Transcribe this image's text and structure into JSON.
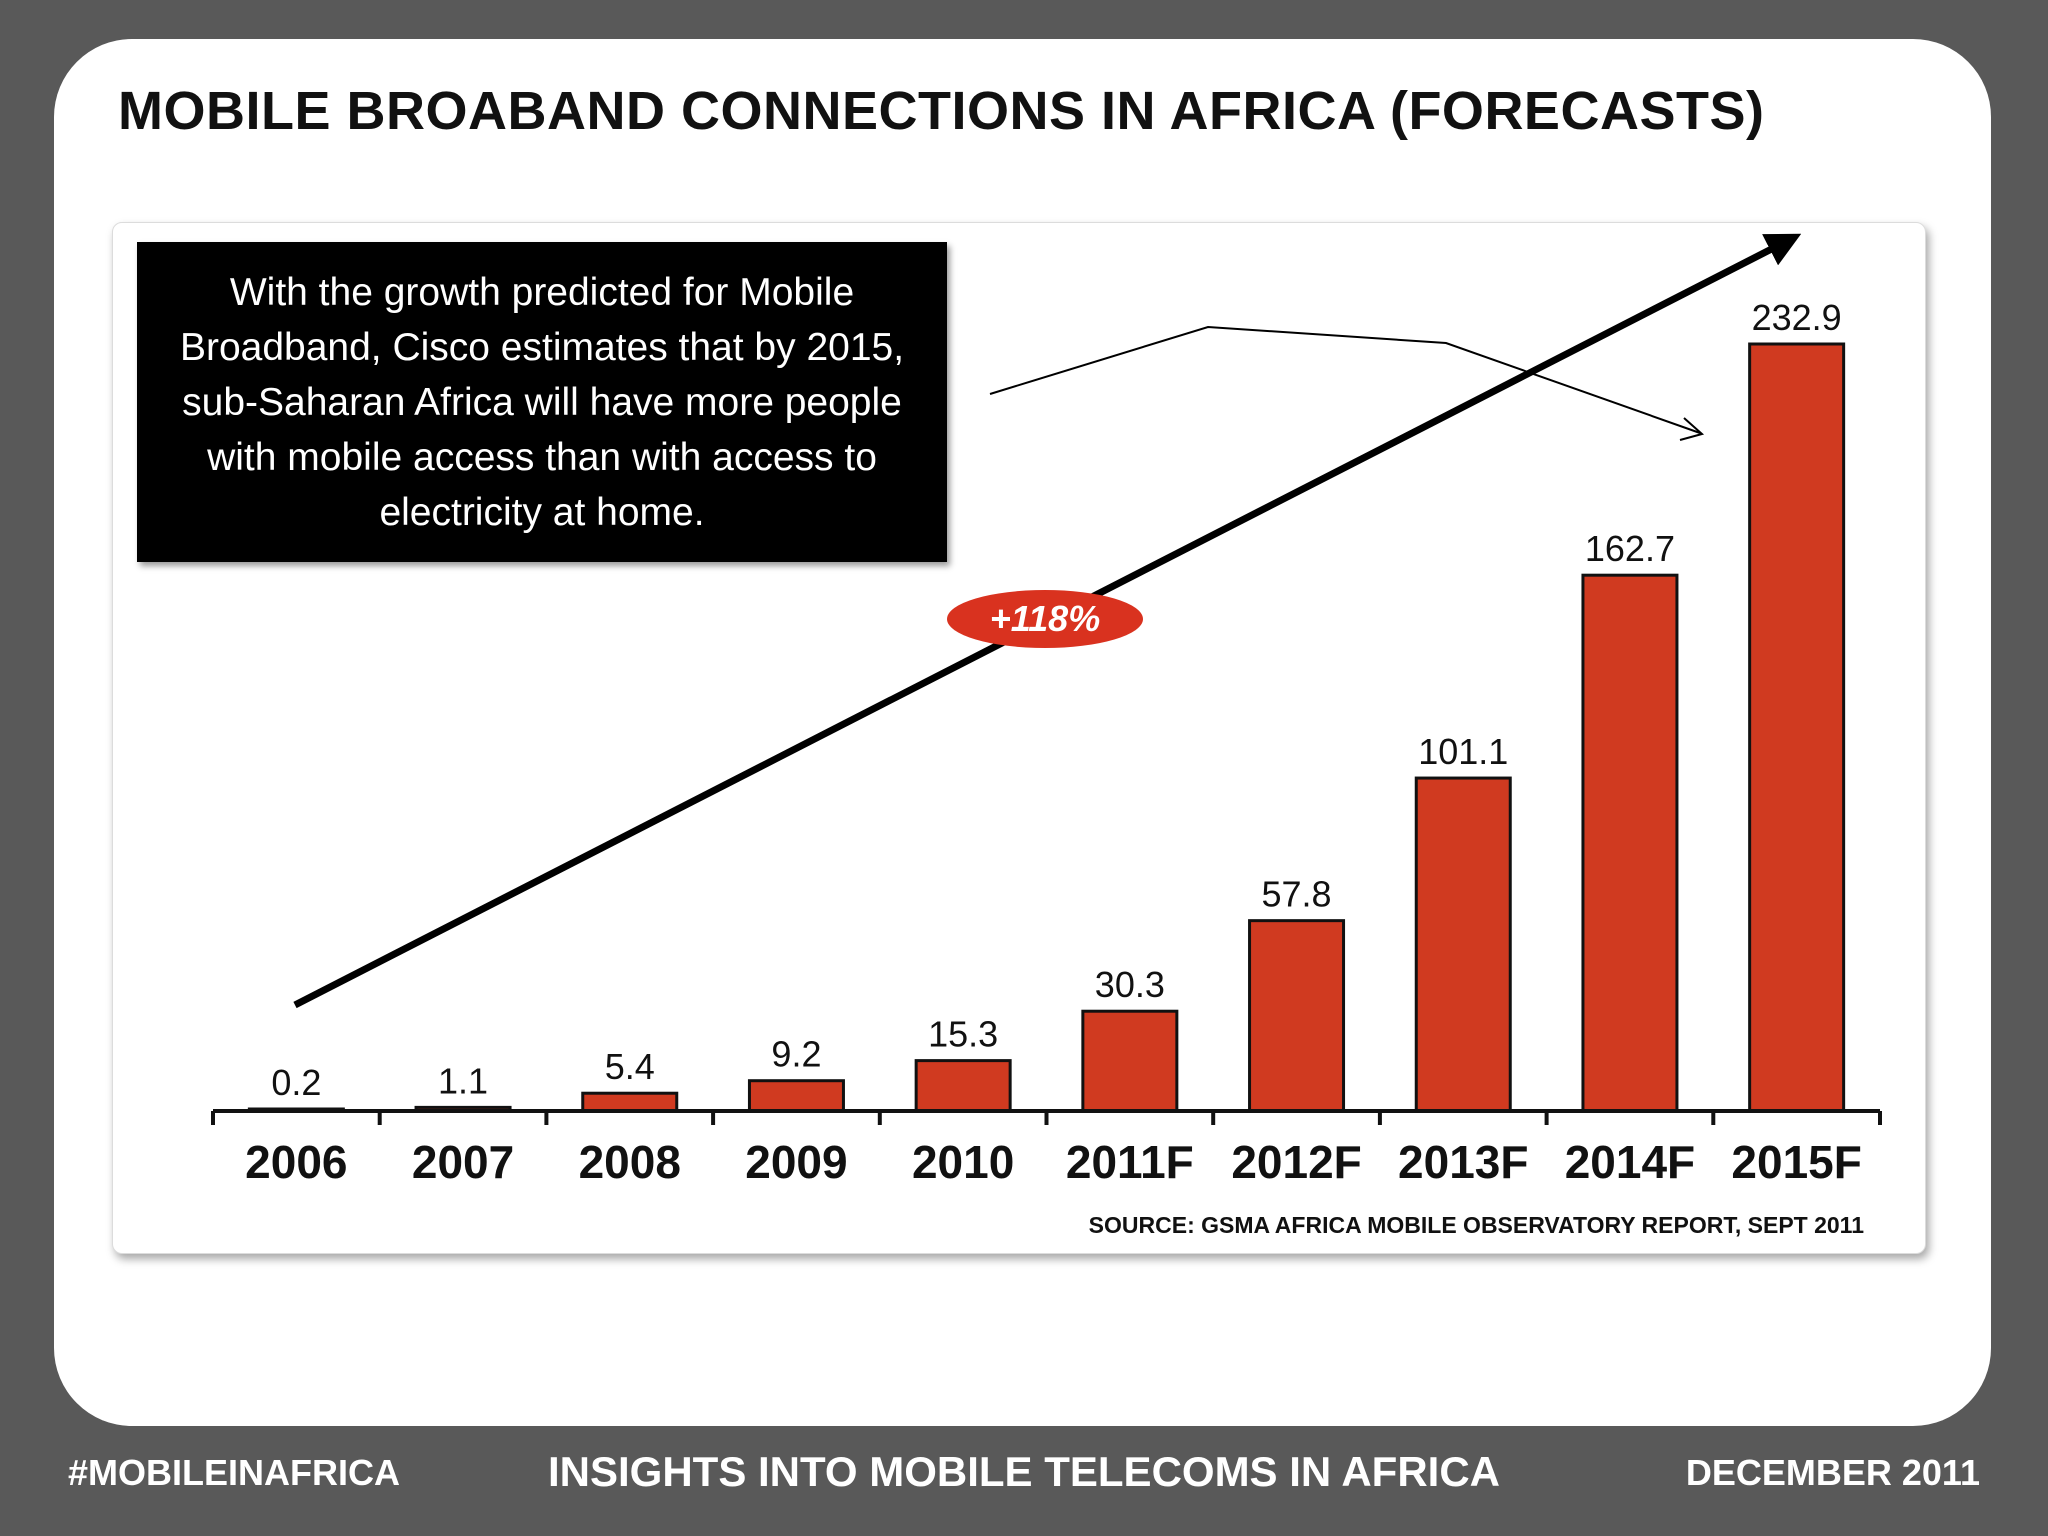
{
  "slide": {
    "title": "MOBILE BROABAND CONNECTIONS IN AFRICA (FORECASTS)"
  },
  "callout": {
    "text": "With the growth predicted for Mobile Broadband, Cisco estimates that by 2015, sub-Saharan Africa will have more people with mobile access than with access to electricity at home."
  },
  "growth_badge": "+118%",
  "source": "SOURCE: GSMA AFRICA MOBILE OBSERVATORY REPORT, SEPT 2011",
  "footer": {
    "left": "#MOBILEINAFRICA",
    "center": "INSIGHTS INTO MOBILE TELECOMS IN AFRICA",
    "right": "DECEMBER 2011"
  },
  "colors": {
    "bar": "#d03a20",
    "badge": "#d9321f",
    "background": "#595959"
  },
  "chart_data": {
    "type": "bar",
    "categories": [
      "2006",
      "2007",
      "2008",
      "2009",
      "2010",
      "2011F",
      "2012F",
      "2013F",
      "2014F",
      "2015F"
    ],
    "values": [
      0.2,
      1.1,
      5.4,
      9.2,
      15.3,
      30.3,
      57.8,
      101.1,
      162.7,
      232.9
    ],
    "value_labels": [
      "0.2",
      "1.1",
      "5.4",
      "9.2",
      "15.3",
      "30.3",
      "57.8",
      "101.1",
      "162.7",
      "232.9"
    ],
    "title": "",
    "xlabel": "",
    "ylabel": "",
    "ylim": [
      0,
      232.9
    ],
    "grid": false,
    "legend": "none"
  }
}
